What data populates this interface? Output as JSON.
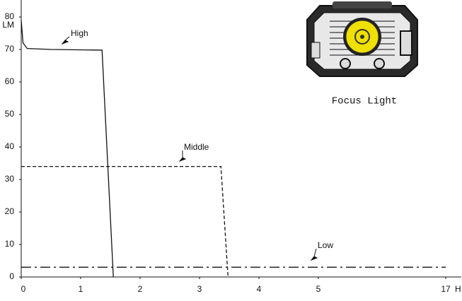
{
  "chart_data": {
    "type": "line",
    "y_unit": "LM",
    "x_unit": "H",
    "caption": "Focus Light",
    "x_ticks_note": "broken axis",
    "xlim": [
      0,
      17
    ],
    "ylim": [
      0,
      80
    ],
    "xticks": [
      0,
      1,
      2,
      3,
      4,
      5,
      17
    ],
    "yticks": [
      0,
      10,
      20,
      30,
      40,
      50,
      60,
      70,
      80
    ],
    "series": [
      {
        "name": "High",
        "color": "#111111",
        "style": "solid",
        "x": [
          0,
          0.03,
          0.1,
          0.5,
          1.36,
          1.55
        ],
        "values": [
          79,
          72,
          70.3,
          70,
          69.8,
          0
        ]
      },
      {
        "name": "Middle",
        "color": "#111111",
        "style": "dashed",
        "x": [
          0,
          3.36,
          3.48
        ],
        "values": [
          34,
          34,
          0
        ]
      },
      {
        "name": "Low",
        "color": "#111111",
        "style": "dashdot",
        "x": [
          0,
          17
        ],
        "values": [
          3,
          3
        ]
      }
    ]
  }
}
